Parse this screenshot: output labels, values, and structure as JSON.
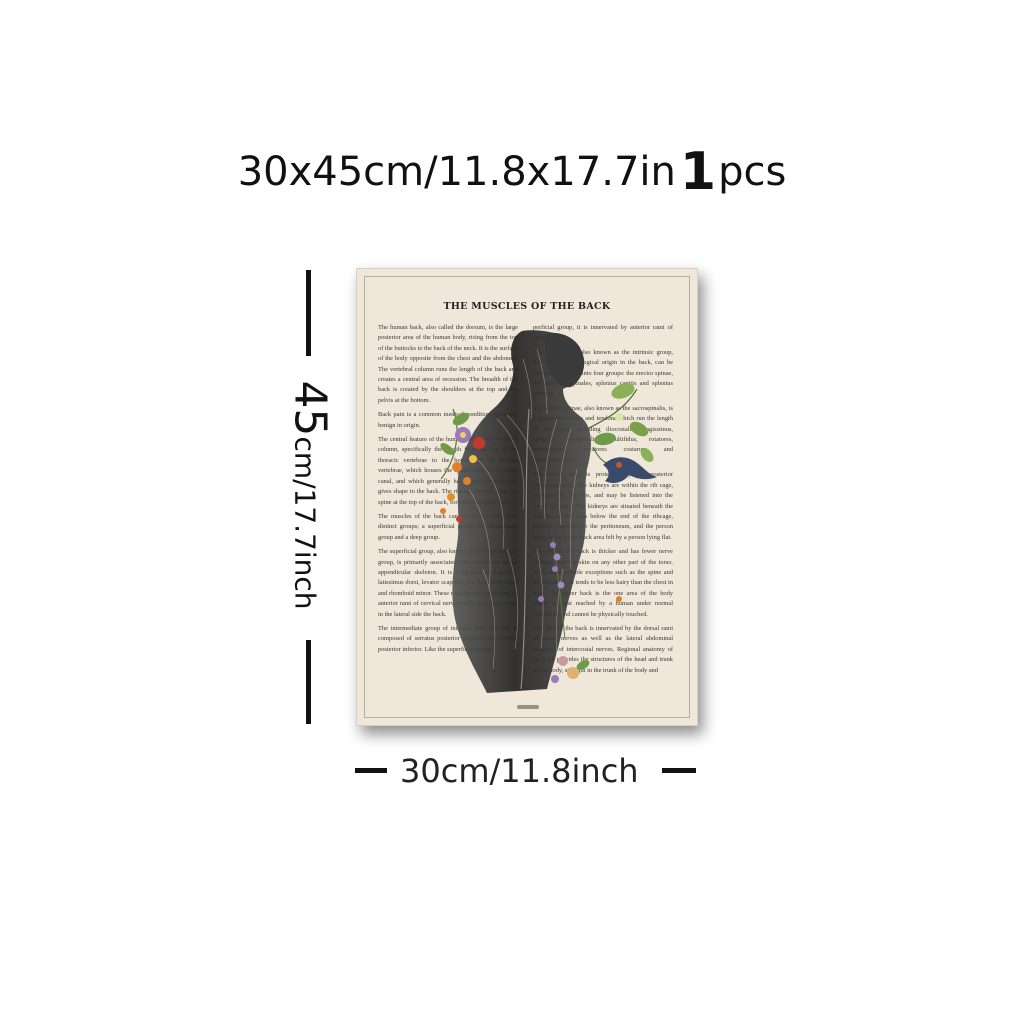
{
  "headline": {
    "size": "30x45cm/11.8x17.7in",
    "quantity": "1",
    "unit": "pcs"
  },
  "height_label": {
    "value": "45",
    "unit": "cm/17.7inch"
  },
  "width_label": "30cm/11.8inch",
  "poster": {
    "title": "THE MUSCLES OF THE BACK",
    "left_paragraphs": [
      "The human back, also called the dorsum, is the large posterior area of the human body, rising from the top of the buttocks to the back of the neck. It is the surface of the body opposite from the chest and the abdomen. The vertebral column runs the length of the back and creates a central area of recession. The breadth of the back is created by the shoulders at the top and the pelvis at the bottom.",
      "Back pain is a common medical condition, generally benign in origin.",
      "The central feature of the human back is the vertebral column, specifically the length from the top of the thoracic vertebrae to the bottom of the lumbar vertebrae, which houses the spinal cord in its spinal canal, and which generally has some curvature that gives shape to the back. The ribcage extends from the spine at the top of the back, forming the upper back.",
      "The muscles of the back can be divided into three distinct groups; a superficial group, an intermediate group and a deep group.",
      "The superficial group, also known as the appendicular group, is primarily associated with movement of the appendicular skeleton. It is composed of trapezius, latissimus dorsi, levator scapulae, the rhomboid major and rhomboid minor. These muscles are innervated by anterior rami of cervical nerves, reflecting their origin in the lateral side the back.",
      "The intermediate group of intrinsic back muscles, is composed of serratus posterior superior and serratus posterior inferior. Like the superficial group,"
    ],
    "right_paragraphs": [
      "perficial group, it is innervated by anterior rami of spinal nerves.",
      "The deep group, also known as the intrinsic group, due to its embryological origin in the back, can be further subdivided into four groups: the erector spinae, the transversospinales, splenius capitis and splenius cervicis.",
      "The erector spinae, also known as the sacrospinalis, is a group of muscles and tendons which run the length of the back, including iliocostalis, longissimus, spinalis, semispinalis, multifidus, rotatores, interspinales, levatores costarum and intertransversarii.",
      "The lower back is protected by the posterior abdominal wall. The kidneys are within the rib cage, protected by the ribs, and may be listened into the lower rib cage. The kidneys are situated beneath the muscles in the area below the end of the ribcage, loosely connected to the peritoneum, and the person lying in the lower back area felt by a person lying flat.",
      "The skin of the back is thicker and has fewer nerve endings than the skin on any other part of the torso. With some notable exceptions such as the spine and the shoulders, it tends to be less hairy than the chest in men. The upper back is the one area of the body which is least reached by a human under normal conditions and cannot be physically touched.",
      "The skin of the back is innervated by the dorsal rami of spinal nerves as well as the lateral abdominal branches of intercostal nerves. Regional anatomy of the back provides the structures of the head and trunk of the body, strength in the trunk of the body and"
    ]
  },
  "colors": {
    "paper": "#efe8da",
    "ink": "#3a3530",
    "muscle": "#2a2a2a",
    "leaf": "#6f9a4a",
    "flower_orange": "#e0802a",
    "flower_purple": "#9a7ab8",
    "flower_red": "#c43a2a"
  }
}
